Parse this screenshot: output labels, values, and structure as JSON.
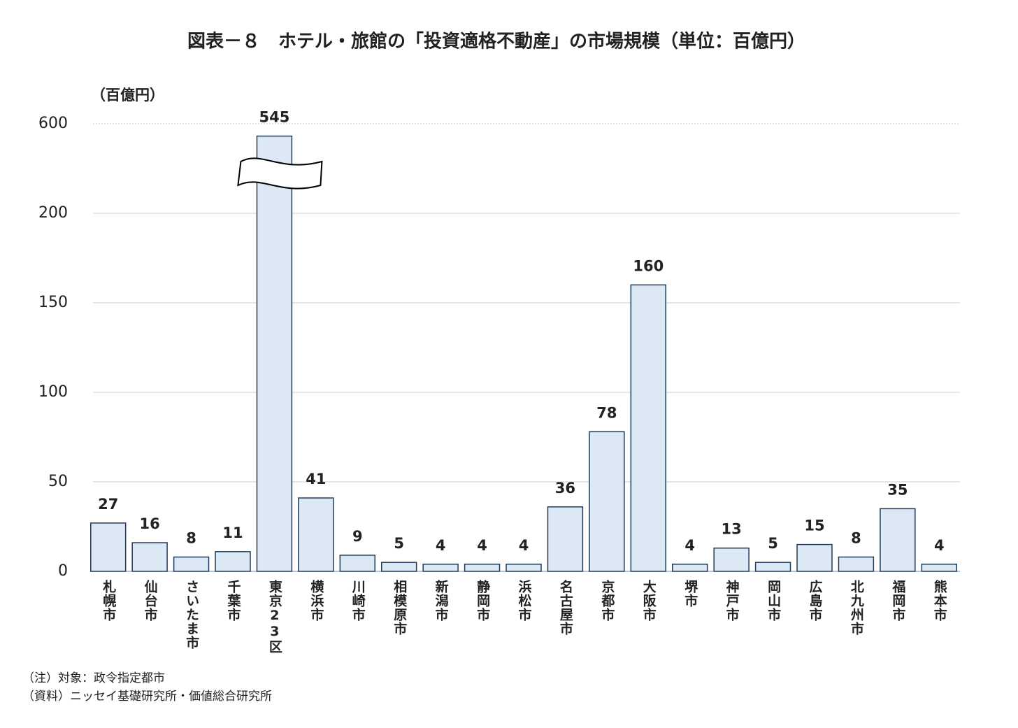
{
  "chart_data": {
    "type": "bar",
    "title": "図表－８　ホテル・旅館の「投資適格不動産」の市場規模（単位：百億円）",
    "y_label": "（百億円）",
    "categories": [
      "札幌市",
      "仙台市",
      "さいたま市",
      "千葉市",
      "東京23区",
      "横浜市",
      "川崎市",
      "相模原市",
      "新潟市",
      "静岡市",
      "浜松市",
      "名古屋市",
      "京都市",
      "大阪市",
      "堺市",
      "神戸市",
      "岡山市",
      "広島市",
      "北九州市",
      "福岡市",
      "熊本市"
    ],
    "values": [
      27,
      16,
      8,
      11,
      545,
      41,
      9,
      5,
      4,
      4,
      4,
      36,
      78,
      160,
      4,
      13,
      5,
      15,
      8,
      35,
      4
    ],
    "color": "#dce9f5",
    "edge_color": "#1f3b5c",
    "ylim": [
      0,
      600
    ],
    "yticks": [
      0,
      50,
      100,
      150,
      200,
      600
    ],
    "axis_break": true,
    "grid": true,
    "notes": [
      "（注）対象：政令指定都市",
      "（資料）ニッセイ基礎研究所・価値総合研究所"
    ]
  }
}
